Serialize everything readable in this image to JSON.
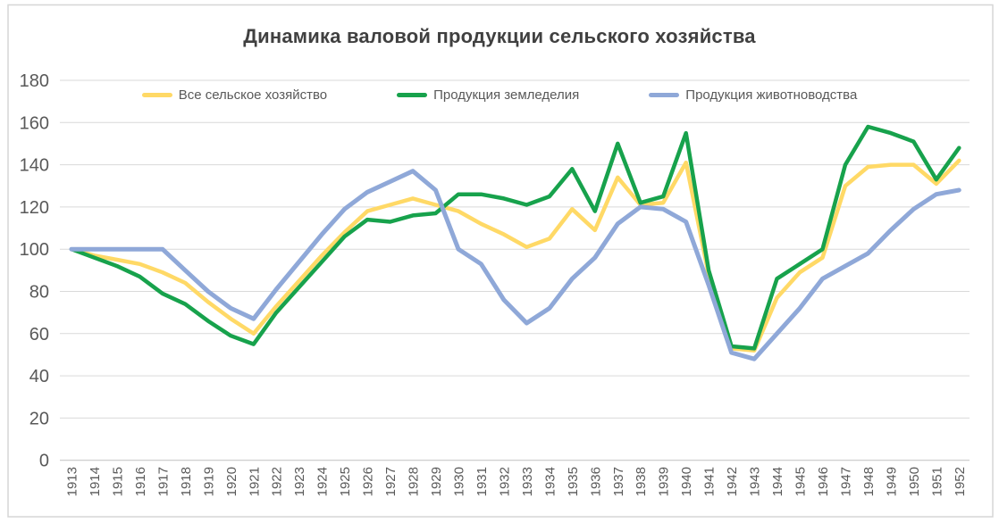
{
  "chart_data": {
    "type": "line",
    "title": "Динамика валовой продукции сельского хозяйства",
    "x": [
      1913,
      1914,
      1915,
      1916,
      1917,
      1918,
      1919,
      1920,
      1921,
      1922,
      1923,
      1924,
      1925,
      1926,
      1927,
      1928,
      1929,
      1930,
      1931,
      1932,
      1933,
      1934,
      1935,
      1936,
      1937,
      1938,
      1939,
      1940,
      1941,
      1942,
      1943,
      1944,
      1945,
      1946,
      1947,
      1948,
      1949,
      1950,
      1951,
      1952
    ],
    "series": [
      {
        "name": "Все сельское хозяйство",
        "color": "#FFD966",
        "stroke_width": 4.5,
        "values": [
          100,
          97,
          95,
          93,
          89,
          84,
          75,
          67,
          60,
          73,
          85,
          97,
          108,
          118,
          121,
          124,
          121,
          118,
          112,
          107,
          101,
          105,
          119,
          109,
          134,
          121,
          122,
          141,
          88,
          53,
          52,
          77,
          89,
          96,
          130,
          139,
          140,
          140,
          131,
          142
        ]
      },
      {
        "name": "Продукция земледелия",
        "color": "#17A24C",
        "stroke_width": 4.5,
        "values": [
          100,
          96,
          92,
          87,
          79,
          74,
          66,
          59,
          55,
          70,
          82,
          94,
          106,
          114,
          113,
          116,
          117,
          126,
          126,
          124,
          121,
          125,
          138,
          118,
          150,
          122,
          125,
          155,
          90,
          54,
          53,
          86,
          93,
          100,
          140,
          158,
          155,
          151,
          133,
          148
        ]
      },
      {
        "name": "Продукция животноводства",
        "color": "#8FA8D8",
        "stroke_width": 5,
        "values": [
          100,
          100,
          100,
          100,
          100,
          90,
          80,
          72,
          67,
          81,
          94,
          107,
          119,
          127,
          132,
          137,
          128,
          100,
          93,
          76,
          65,
          72,
          86,
          96,
          112,
          120,
          119,
          113,
          83,
          51,
          48,
          60,
          72,
          86,
          92,
          98,
          109,
          119,
          126,
          128
        ]
      }
    ],
    "ylim": [
      0,
      180
    ],
    "ytick_step": 20,
    "yticks": [
      0,
      20,
      40,
      60,
      80,
      100,
      120,
      140,
      160,
      180
    ],
    "grid": true,
    "legend_position": "top",
    "xlabel": "",
    "ylabel": ""
  },
  "colors": {
    "gridline": "#D9D9D9",
    "axis_line": "#BFBFBF",
    "tick_text": "#595959",
    "title_text": "#404040",
    "frame_border": "#D6D6D6",
    "background": "#FFFFFF"
  }
}
